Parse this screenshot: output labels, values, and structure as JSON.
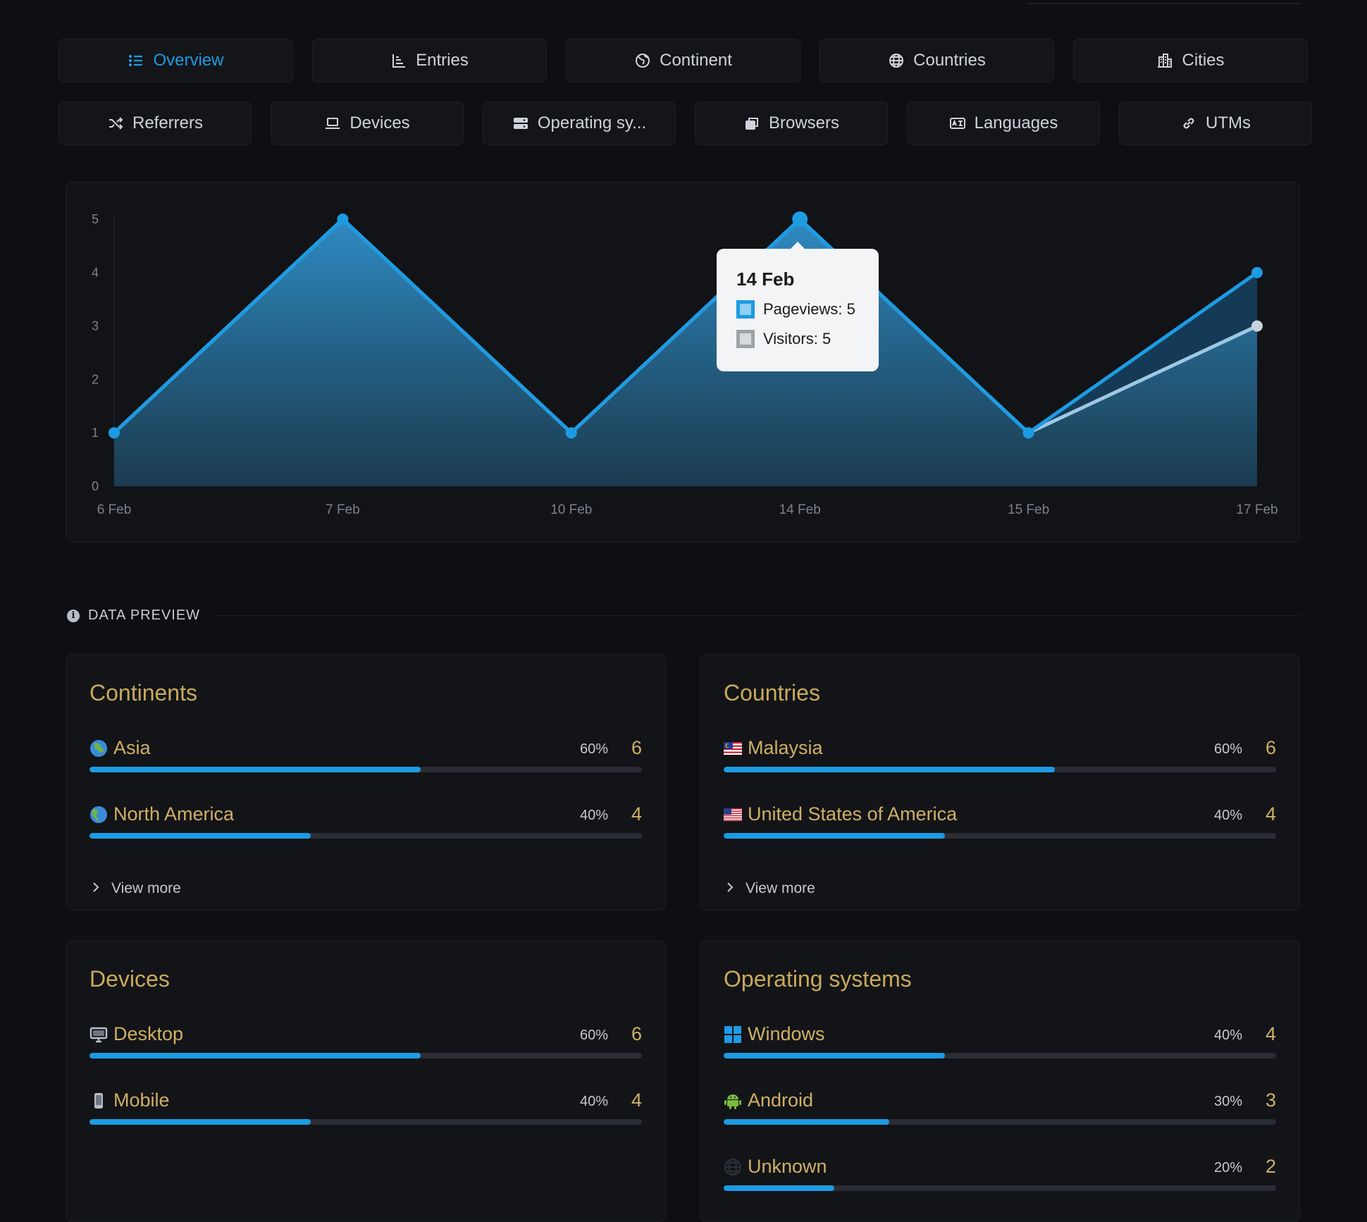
{
  "tabs_row1": [
    {
      "label": "Overview",
      "icon": "list-icon",
      "active": true
    },
    {
      "label": "Entries",
      "icon": "bar-chart-icon",
      "active": false
    },
    {
      "label": "Continent",
      "icon": "earth-icon",
      "active": false
    },
    {
      "label": "Countries",
      "icon": "globe-icon",
      "active": false
    },
    {
      "label": "Cities",
      "icon": "city-icon",
      "active": false
    }
  ],
  "tabs_row2": [
    {
      "label": "Referrers",
      "icon": "shuffle-icon"
    },
    {
      "label": "Devices",
      "icon": "laptop-icon"
    },
    {
      "label": "Operating sy...",
      "icon": "server-icon"
    },
    {
      "label": "Browsers",
      "icon": "browser-windows-icon"
    },
    {
      "label": "Languages",
      "icon": "language-card-icon"
    },
    {
      "label": "UTMs",
      "icon": "link-icon"
    }
  ],
  "chart_data": {
    "type": "area",
    "categories": [
      "6 Feb",
      "7 Feb",
      "10 Feb",
      "14 Feb",
      "15 Feb",
      "17 Feb"
    ],
    "series": [
      {
        "name": "Pageviews",
        "values": [
          1,
          5,
          1,
          5,
          1,
          4
        ]
      },
      {
        "name": "Visitors",
        "values": [
          1,
          5,
          1,
          5,
          1,
          3
        ]
      }
    ],
    "yticks": [
      0,
      1,
      2,
      3,
      4,
      5
    ],
    "ylim": [
      0,
      5
    ],
    "colors": {
      "pageviews": "#1d9be3",
      "visitors": "#9ec7e2"
    },
    "tooltip": {
      "title": "14 Feb",
      "pageviews_label": "Pageviews: 5",
      "visitors_label": "Visitors: 5"
    }
  },
  "section": {
    "label": "DATA PREVIEW"
  },
  "panels": {
    "continents": {
      "title": "Continents",
      "view_more": "View more",
      "rows": [
        {
          "name": "Asia",
          "icon": "globe-asia-icon",
          "pct": "60%",
          "count": "6",
          "frac": 0.6
        },
        {
          "name": "North America",
          "icon": "globe-americas-icon",
          "pct": "40%",
          "count": "4",
          "frac": 0.4
        }
      ]
    },
    "countries": {
      "title": "Countries",
      "view_more": "View more",
      "rows": [
        {
          "name": "Malaysia",
          "icon": "malaysia-flag-icon",
          "pct": "60%",
          "count": "6",
          "frac": 0.6
        },
        {
          "name": "United States of America",
          "icon": "usa-flag-icon",
          "pct": "40%",
          "count": "4",
          "frac": 0.4
        }
      ]
    },
    "devices": {
      "title": "Devices",
      "rows": [
        {
          "name": "Desktop",
          "icon": "desktop-icon",
          "pct": "60%",
          "count": "6",
          "frac": 0.6
        },
        {
          "name": "Mobile",
          "icon": "mobile-icon",
          "pct": "40%",
          "count": "4",
          "frac": 0.4
        }
      ]
    },
    "os": {
      "title": "Operating systems",
      "rows": [
        {
          "name": "Windows",
          "icon": "windows-icon",
          "pct": "40%",
          "count": "4",
          "frac": 0.4
        },
        {
          "name": "Android",
          "icon": "android-icon",
          "pct": "30%",
          "count": "3",
          "frac": 0.3
        },
        {
          "name": "Unknown",
          "icon": "unknown-globe-icon",
          "pct": "20%",
          "count": "2",
          "frac": 0.2
        }
      ]
    }
  }
}
